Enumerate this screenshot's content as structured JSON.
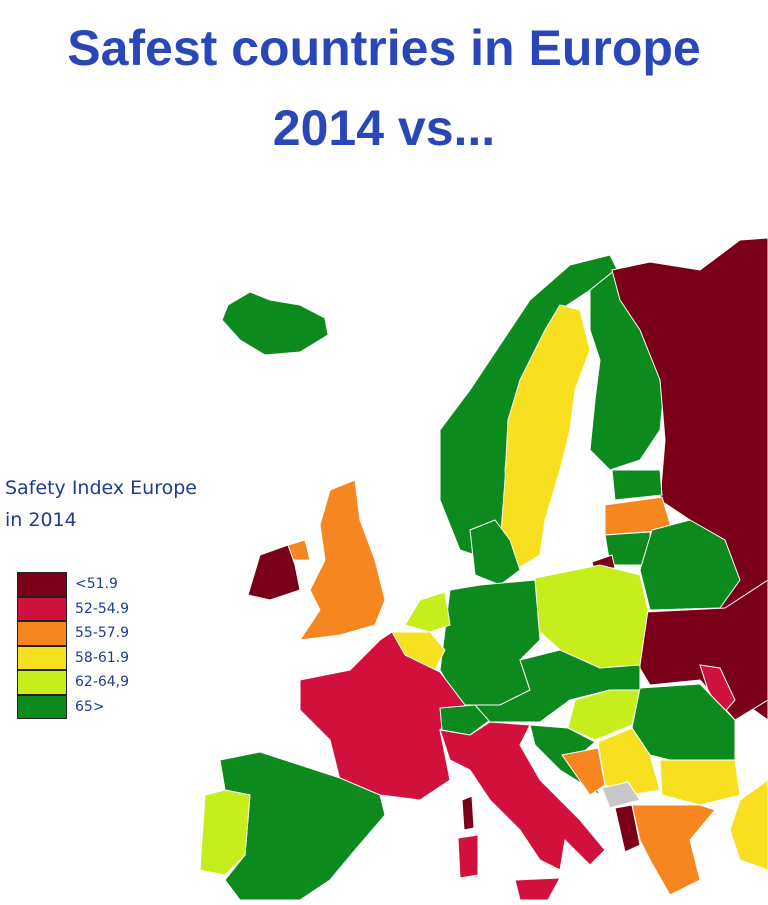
{
  "header": {
    "title_lines": [
      "Safest countries in Europe",
      "2014 vs..."
    ]
  },
  "legend": {
    "title_lines": [
      "Safety Index Europe",
      "in 2014"
    ],
    "items": [
      {
        "label": "<51.9",
        "color": "#7a0019"
      },
      {
        "label": "52-54.9",
        "color": "#d1103c"
      },
      {
        "label": "55-57.9",
        "color": "#f6861f"
      },
      {
        "label": "58-61.9",
        "color": "#f8e020"
      },
      {
        "label": "62-64,9",
        "color": "#c5ee1c"
      },
      {
        "label": "65>",
        "color": "#0c8a1e"
      }
    ]
  }
}
